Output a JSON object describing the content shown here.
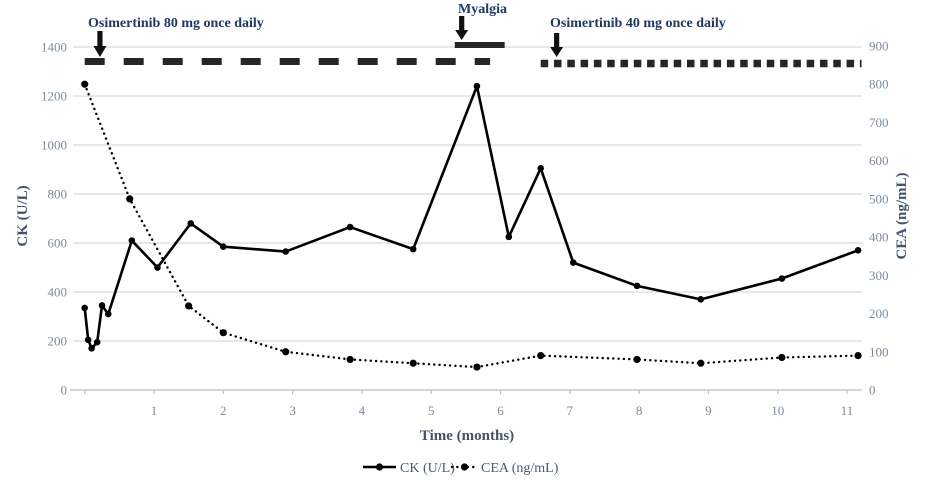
{
  "chart_data": {
    "type": "line",
    "title": "",
    "xlabel": "Time (months)",
    "ylabel_left": "CK (U/L)",
    "ylabel_right": "CEA (ng/mL)",
    "x_axis": {
      "ticks": [
        1,
        2,
        3,
        4,
        5,
        6,
        7,
        8,
        9,
        10,
        11
      ],
      "range": [
        0,
        11.4
      ],
      "tick_marks": [
        0,
        1,
        2,
        3,
        4,
        5,
        6,
        7,
        8,
        9,
        10,
        11
      ]
    },
    "left_axis": {
      "ticks": [
        0,
        200,
        400,
        600,
        800,
        1000,
        1200,
        1400
      ],
      "range": [
        0,
        1400
      ]
    },
    "right_axis": {
      "ticks": [
        0,
        100,
        200,
        300,
        400,
        500,
        600,
        700,
        800,
        900
      ],
      "range": [
        0,
        900
      ]
    },
    "grid": "horizontal",
    "series": [
      {
        "name": "CK (U/L)",
        "axis": "left",
        "style": "solid",
        "marker": "circle",
        "x": [
          0,
          0.05,
          0.1,
          0.18,
          0.25,
          0.34,
          0.68,
          1.05,
          1.53,
          2.0,
          2.9,
          3.83,
          4.74,
          5.66,
          6.12,
          6.58,
          7.05,
          7.97,
          8.89,
          10.06,
          11.16
        ],
        "y": [
          335,
          205,
          170,
          195,
          345,
          310,
          610,
          500,
          680,
          585,
          565,
          665,
          575,
          1240,
          625,
          905,
          520,
          425,
          370,
          455,
          570
        ]
      },
      {
        "name": "CEA (ng/mL)",
        "axis": "right",
        "style": "dotted",
        "marker": "circle",
        "x": [
          0,
          0.65,
          1.5,
          2.0,
          2.9,
          3.83,
          4.74,
          5.66,
          6.58,
          7.97,
          8.89,
          10.06,
          11.16
        ],
        "y": [
          800,
          500,
          220,
          150,
          100,
          80,
          70,
          60,
          90,
          80,
          70,
          85,
          90
        ]
      }
    ],
    "annotations": {
      "treatment1": {
        "label": "Osimertinib 80 mg once daily",
        "arrow_month": 0.22,
        "line_start_month": 0.0,
        "line_end_month": 5.85,
        "line_style": "dashed"
      },
      "myalgia": {
        "label": "Myalgia",
        "arrow_month": 5.44,
        "bar_start_month": 5.34,
        "bar_end_month": 6.06
      },
      "treatment2": {
        "label": "Osimertinib 40 mg once daily",
        "arrow_month": 6.81,
        "line_start_month": 6.58,
        "line_end_month": 11.21,
        "line_style": "square-dotted"
      }
    },
    "legend": {
      "position": "bottom",
      "entries": [
        "CK (U/L)",
        "CEA (ng/mL)"
      ]
    },
    "colors": {
      "series": "#000000",
      "annotation_marks": "#262626",
      "grid": "#d9d9d9",
      "axis_line": "#bfbfbf",
      "tick_label": "#7d8ba0",
      "axis_title": "#44546a",
      "annotation_text": "#1f3864"
    }
  }
}
